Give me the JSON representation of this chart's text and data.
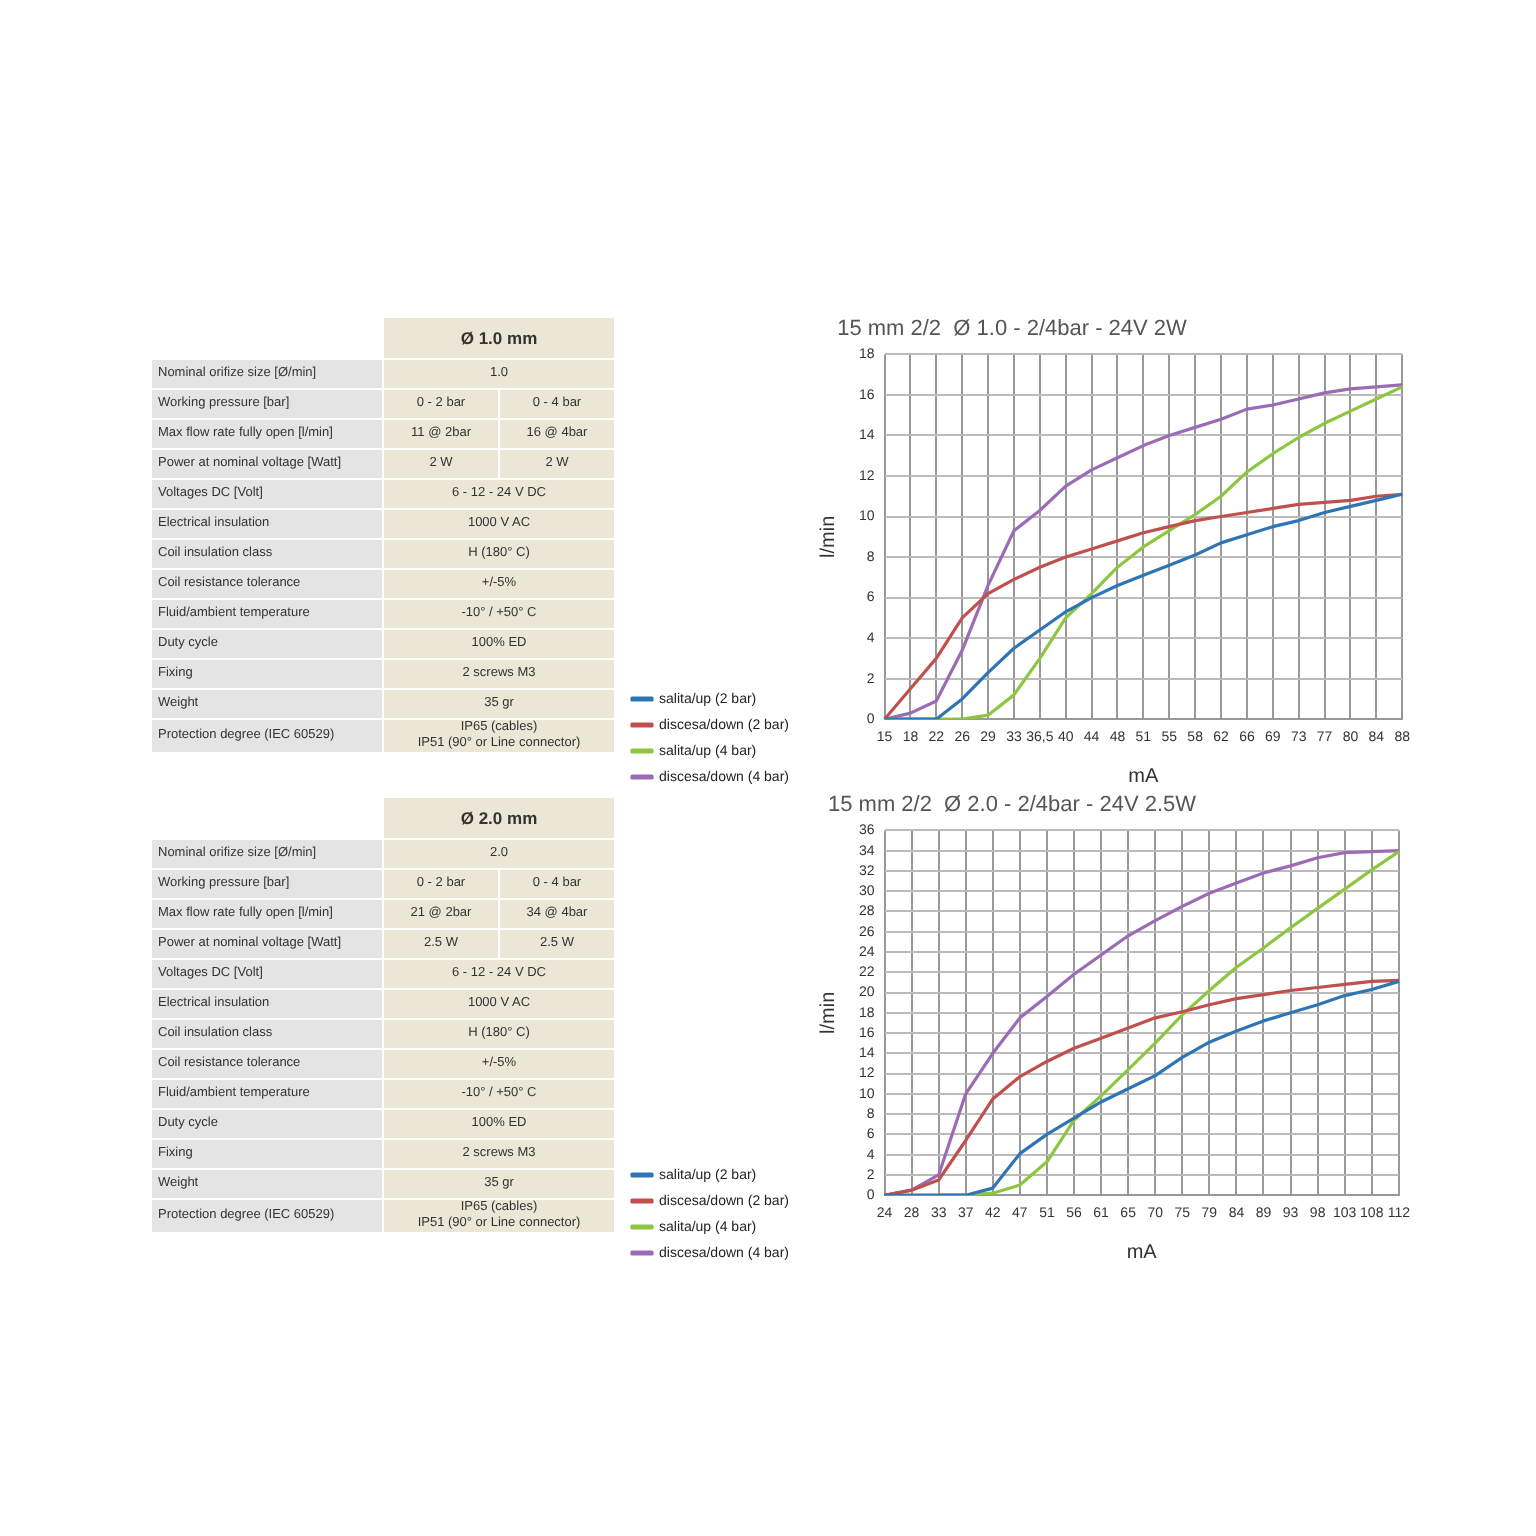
{
  "chart_data": [
    {
      "type": "other",
      "title": "Ø 1.0 mm",
      "y_categories": [
        "Nominal orifize size [Ø/min]",
        "Working pressure [bar]",
        "Max flow rate fully open [l/min]",
        "Power at nominal voltage [Watt]",
        "Voltages DC [Volt]",
        "Electrical insulation",
        "Coil insulation class",
        "Coil resistance tolerance",
        "Fluid/ambient temperature",
        "Duty cycle",
        "Fixing",
        "Weight",
        "Protection degree (IEC 60529)"
      ],
      "cell_labels": [
        [
          "1.0"
        ],
        [
          "0 - 2 bar",
          "0 - 4 bar"
        ],
        [
          "11 @ 2bar",
          "16 @ 4bar"
        ],
        [
          "2 W",
          "2 W"
        ],
        [
          "6 - 12 - 24 V DC"
        ],
        [
          "1000 V AC"
        ],
        [
          "H (180° C)"
        ],
        [
          "+/-5%"
        ],
        [
          "-10° / +50° C"
        ],
        [
          "100% ED"
        ],
        [
          "2 screws M3"
        ],
        [
          "35 gr"
        ],
        [
          "IP65 (cables)\nIP51 (90° or Line connector)"
        ]
      ]
    },
    {
      "type": "line",
      "title": "15 mm 2/2  Ø 1.0 - 2/4bar - 24V 2W",
      "xlabel": "mA",
      "ylabel": "l/min",
      "grid": true,
      "legend": "left",
      "ylim": [
        0,
        18
      ],
      "yticks": [
        0,
        2,
        4,
        6,
        8,
        10,
        12,
        14,
        16,
        18
      ],
      "categories": [
        "15",
        "18",
        "22",
        "26",
        "29",
        "33",
        "36,5",
        "40",
        "44",
        "48",
        "51",
        "55",
        "58",
        "62",
        "66",
        "69",
        "73",
        "77",
        "80",
        "84",
        "88"
      ],
      "series": [
        {
          "name": "salita/up (2 bar)",
          "color": "#2e75b6",
          "values": [
            0,
            0,
            0,
            1.0,
            2.3,
            3.5,
            4.4,
            5.3,
            6.0,
            6.6,
            7.1,
            7.6,
            8.1,
            8.7,
            9.1,
            9.5,
            9.8,
            10.2,
            10.5,
            10.8,
            11.1
          ]
        },
        {
          "name": "discesa/down (2 bar)",
          "color": "#c0504d",
          "values": [
            0,
            1.5,
            3.0,
            5.0,
            6.2,
            6.9,
            7.5,
            8.0,
            8.4,
            8.8,
            9.2,
            9.5,
            9.8,
            10.0,
            10.2,
            10.4,
            10.6,
            10.7,
            10.8,
            11.0,
            11.1
          ]
        },
        {
          "name": "salita/up (4 bar)",
          "color": "#8dc63f",
          "values": [
            0,
            0,
            0,
            0,
            0.2,
            1.2,
            3.0,
            5.0,
            6.2,
            7.5,
            8.5,
            9.3,
            10.1,
            11.0,
            12.2,
            13.1,
            13.9,
            14.6,
            15.2,
            15.8,
            16.4
          ]
        },
        {
          "name": "discesa/down (4 bar)",
          "color": "#9b6bb5",
          "values": [
            0,
            0.3,
            0.9,
            3.4,
            6.6,
            9.3,
            10.3,
            11.5,
            12.3,
            12.9,
            13.5,
            14.0,
            14.4,
            14.8,
            15.3,
            15.5,
            15.8,
            16.1,
            16.3,
            16.4,
            16.5
          ]
        }
      ]
    },
    {
      "type": "other",
      "title": "Ø 2.0 mm",
      "y_categories": [
        "Nominal orifize size [Ø/min]",
        "Working pressure [bar]",
        "Max flow rate fully open [l/min]",
        "Power at nominal voltage [Watt]",
        "Voltages DC [Volt]",
        "Electrical insulation",
        "Coil insulation class",
        "Coil resistance tolerance",
        "Fluid/ambient temperature",
        "Duty cycle",
        "Fixing",
        "Weight",
        "Protection degree (IEC 60529)"
      ],
      "cell_labels": [
        [
          "2.0"
        ],
        [
          "0 - 2 bar",
          "0 - 4 bar"
        ],
        [
          "21 @ 2bar",
          "34 @ 4bar"
        ],
        [
          "2.5 W",
          "2.5 W"
        ],
        [
          "6 - 12 - 24 V DC"
        ],
        [
          "1000 V AC"
        ],
        [
          "H (180° C)"
        ],
        [
          "+/-5%"
        ],
        [
          "-10° / +50° C"
        ],
        [
          "100% ED"
        ],
        [
          "2 screws M3"
        ],
        [
          "35 gr"
        ],
        [
          "IP65 (cables)\nIP51 (90° or Line connector)"
        ]
      ]
    },
    {
      "type": "line",
      "title": "15 mm 2/2  Ø 2.0 - 2/4bar - 24V 2.5W",
      "xlabel": "mA",
      "ylabel": "l/min",
      "grid": true,
      "legend": "left",
      "ylim": [
        0,
        36
      ],
      "yticks": [
        0,
        2,
        4,
        6,
        8,
        10,
        12,
        14,
        16,
        18,
        20,
        22,
        24,
        26,
        28,
        30,
        32,
        34,
        36
      ],
      "categories": [
        "24",
        "28",
        "33",
        "37",
        "42",
        "47",
        "51",
        "56",
        "61",
        "65",
        "70",
        "75",
        "79",
        "84",
        "89",
        "93",
        "98",
        "103",
        "108",
        "112"
      ],
      "series": [
        {
          "name": "salita/up (2 bar)",
          "color": "#2e75b6",
          "values": [
            0,
            0,
            0,
            0,
            0.7,
            4.1,
            6.0,
            7.6,
            9.2,
            10.5,
            11.8,
            13.6,
            15.1,
            16.2,
            17.2,
            18.0,
            18.8,
            19.7,
            20.3,
            21.1
          ]
        },
        {
          "name": "discesa/down (2 bar)",
          "color": "#c0504d",
          "values": [
            0,
            0.5,
            1.5,
            5.4,
            9.5,
            11.7,
            13.2,
            14.5,
            15.5,
            16.5,
            17.5,
            18.1,
            18.8,
            19.4,
            19.8,
            20.2,
            20.5,
            20.8,
            21.1,
            21.2
          ]
        },
        {
          "name": "salita/up (4 bar)",
          "color": "#8dc63f",
          "values": [
            null,
            null,
            0,
            0,
            0.2,
            1.0,
            3.3,
            7.4,
            9.8,
            12.4,
            15.0,
            17.8,
            20.2,
            22.5,
            24.4,
            26.4,
            28.3,
            30.2,
            32.1,
            33.9
          ]
        },
        {
          "name": "discesa/down (4 bar)",
          "color": "#9b6bb5",
          "values": [
            0,
            0.5,
            2.0,
            10.0,
            14.0,
            17.5,
            19.6,
            21.8,
            23.7,
            25.6,
            27.1,
            28.5,
            29.8,
            30.8,
            31.8,
            32.5,
            33.3,
            33.8,
            33.9,
            34.0
          ]
        }
      ]
    }
  ]
}
